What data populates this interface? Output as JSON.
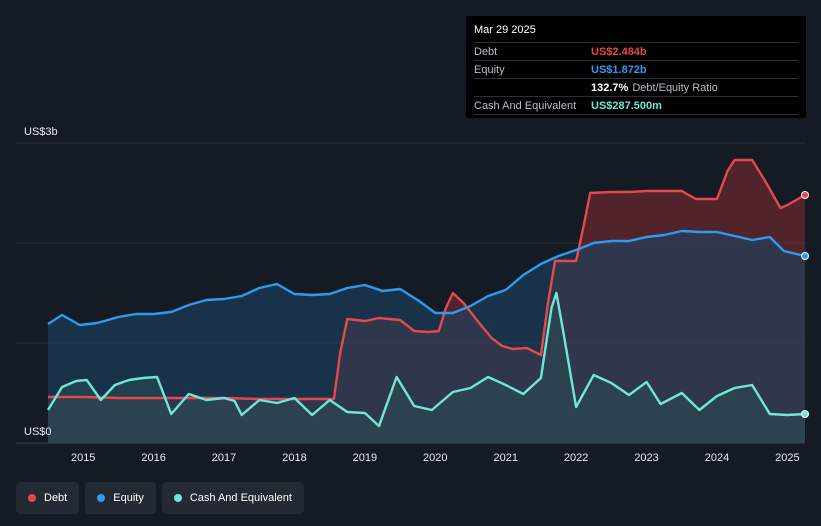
{
  "tooltip": {
    "date": "Mar 29 2025",
    "rows": [
      {
        "label": "Debt",
        "value": "US$2.484b",
        "color": "#e5484d"
      },
      {
        "label": "Equity",
        "value": "US$1.872b",
        "color": "#2d9bef"
      },
      {
        "label": "",
        "value": "132.7%",
        "extra": "Debt/Equity Ratio",
        "color": "#ffffff"
      },
      {
        "label": "Cash And Equivalent",
        "value": "US$287.500m",
        "color": "#6ee7d8"
      }
    ]
  },
  "legend": [
    {
      "label": "Debt",
      "color": "#e5484d"
    },
    {
      "label": "Equity",
      "color": "#2d9bef"
    },
    {
      "label": "Cash And Equivalent",
      "color": "#6ee7d8"
    }
  ],
  "chart_data": {
    "type": "area",
    "y_top_label": "US$3b",
    "y_bottom_label": "US$0",
    "ylim": [
      0,
      3.0
    ],
    "xlim": [
      2014.5,
      2025.25
    ],
    "x_ticks": [
      2015,
      2016,
      2017,
      2018,
      2019,
      2020,
      2021,
      2022,
      2023,
      2024,
      2025
    ],
    "x_tick_labels": [
      "2015",
      "2016",
      "2017",
      "2018",
      "2019",
      "2020",
      "2021",
      "2022",
      "2023",
      "2024",
      "2025"
    ],
    "series": [
      {
        "name": "Debt",
        "color": "#e5484d",
        "fill": "#7a2a30",
        "points": [
          [
            2014.5,
            0.46
          ],
          [
            2015.0,
            0.46
          ],
          [
            2015.5,
            0.45
          ],
          [
            2016.0,
            0.45
          ],
          [
            2016.5,
            0.45
          ],
          [
            2017.0,
            0.45
          ],
          [
            2017.5,
            0.44
          ],
          [
            2018.0,
            0.44
          ],
          [
            2018.5,
            0.44
          ],
          [
            2018.56,
            0.44
          ],
          [
            2018.65,
            0.9
          ],
          [
            2018.75,
            1.24
          ],
          [
            2019.0,
            1.22
          ],
          [
            2019.2,
            1.25
          ],
          [
            2019.5,
            1.23
          ],
          [
            2019.7,
            1.12
          ],
          [
            2019.9,
            1.11
          ],
          [
            2020.05,
            1.12
          ],
          [
            2020.15,
            1.35
          ],
          [
            2020.25,
            1.5
          ],
          [
            2020.4,
            1.4
          ],
          [
            2020.6,
            1.22
          ],
          [
            2020.8,
            1.05
          ],
          [
            2020.95,
            0.97
          ],
          [
            2021.1,
            0.94
          ],
          [
            2021.3,
            0.95
          ],
          [
            2021.5,
            0.88
          ],
          [
            2021.6,
            1.4
          ],
          [
            2021.7,
            1.82
          ],
          [
            2022.0,
            1.82
          ],
          [
            2022.1,
            2.15
          ],
          [
            2022.2,
            2.5
          ],
          [
            2022.5,
            2.51
          ],
          [
            2022.75,
            2.51
          ],
          [
            2023.0,
            2.52
          ],
          [
            2023.25,
            2.52
          ],
          [
            2023.5,
            2.52
          ],
          [
            2023.7,
            2.44
          ],
          [
            2024.0,
            2.44
          ],
          [
            2024.15,
            2.72
          ],
          [
            2024.25,
            2.83
          ],
          [
            2024.5,
            2.83
          ],
          [
            2024.7,
            2.6
          ],
          [
            2024.9,
            2.35
          ],
          [
            2025.0,
            2.38
          ],
          [
            2025.25,
            2.48
          ]
        ]
      },
      {
        "name": "Equity",
        "color": "#2d9bef",
        "fill": "#1b4563",
        "points": [
          [
            2014.5,
            1.19
          ],
          [
            2014.7,
            1.28
          ],
          [
            2014.95,
            1.18
          ],
          [
            2015.2,
            1.2
          ],
          [
            2015.5,
            1.26
          ],
          [
            2015.75,
            1.29
          ],
          [
            2016.0,
            1.29
          ],
          [
            2016.25,
            1.31
          ],
          [
            2016.5,
            1.38
          ],
          [
            2016.75,
            1.43
          ],
          [
            2017.0,
            1.44
          ],
          [
            2017.25,
            1.47
          ],
          [
            2017.5,
            1.55
          ],
          [
            2017.75,
            1.59
          ],
          [
            2018.0,
            1.49
          ],
          [
            2018.25,
            1.48
          ],
          [
            2018.5,
            1.49
          ],
          [
            2018.75,
            1.55
          ],
          [
            2019.0,
            1.58
          ],
          [
            2019.25,
            1.52
          ],
          [
            2019.5,
            1.54
          ],
          [
            2019.75,
            1.43
          ],
          [
            2020.0,
            1.3
          ],
          [
            2020.25,
            1.3
          ],
          [
            2020.5,
            1.37
          ],
          [
            2020.75,
            1.47
          ],
          [
            2021.0,
            1.53
          ],
          [
            2021.25,
            1.68
          ],
          [
            2021.5,
            1.79
          ],
          [
            2021.75,
            1.87
          ],
          [
            2022.0,
            1.93
          ],
          [
            2022.25,
            2.0
          ],
          [
            2022.5,
            2.02
          ],
          [
            2022.75,
            2.02
          ],
          [
            2023.0,
            2.06
          ],
          [
            2023.25,
            2.08
          ],
          [
            2023.5,
            2.12
          ],
          [
            2023.75,
            2.11
          ],
          [
            2024.0,
            2.11
          ],
          [
            2024.25,
            2.07
          ],
          [
            2024.5,
            2.03
          ],
          [
            2024.75,
            2.06
          ],
          [
            2024.95,
            1.92
          ],
          [
            2025.25,
            1.87
          ]
        ]
      },
      {
        "name": "Cash And Equivalent",
        "color": "#6ee7d8",
        "fill": "#2a4d52",
        "points": [
          [
            2014.5,
            0.33
          ],
          [
            2014.7,
            0.56
          ],
          [
            2014.9,
            0.62
          ],
          [
            2015.05,
            0.63
          ],
          [
            2015.25,
            0.43
          ],
          [
            2015.45,
            0.58
          ],
          [
            2015.65,
            0.63
          ],
          [
            2015.85,
            0.65
          ],
          [
            2016.05,
            0.66
          ],
          [
            2016.25,
            0.29
          ],
          [
            2016.5,
            0.49
          ],
          [
            2016.75,
            0.43
          ],
          [
            2017.0,
            0.45
          ],
          [
            2017.15,
            0.42
          ],
          [
            2017.25,
            0.28
          ],
          [
            2017.5,
            0.43
          ],
          [
            2017.75,
            0.4
          ],
          [
            2018.0,
            0.45
          ],
          [
            2018.25,
            0.28
          ],
          [
            2018.5,
            0.43
          ],
          [
            2018.75,
            0.31
          ],
          [
            2019.0,
            0.3
          ],
          [
            2019.2,
            0.17
          ],
          [
            2019.45,
            0.66
          ],
          [
            2019.7,
            0.37
          ],
          [
            2019.95,
            0.33
          ],
          [
            2020.25,
            0.51
          ],
          [
            2020.5,
            0.55
          ],
          [
            2020.75,
            0.66
          ],
          [
            2021.0,
            0.58
          ],
          [
            2021.25,
            0.49
          ],
          [
            2021.5,
            0.65
          ],
          [
            2021.65,
            1.35
          ],
          [
            2021.72,
            1.5
          ],
          [
            2021.82,
            1.1
          ],
          [
            2022.0,
            0.36
          ],
          [
            2022.25,
            0.68
          ],
          [
            2022.5,
            0.6
          ],
          [
            2022.75,
            0.48
          ],
          [
            2023.0,
            0.61
          ],
          [
            2023.2,
            0.39
          ],
          [
            2023.5,
            0.5
          ],
          [
            2023.75,
            0.33
          ],
          [
            2024.0,
            0.47
          ],
          [
            2024.25,
            0.55
          ],
          [
            2024.5,
            0.58
          ],
          [
            2024.75,
            0.29
          ],
          [
            2025.0,
            0.28
          ],
          [
            2025.25,
            0.29
          ]
        ]
      }
    ]
  }
}
